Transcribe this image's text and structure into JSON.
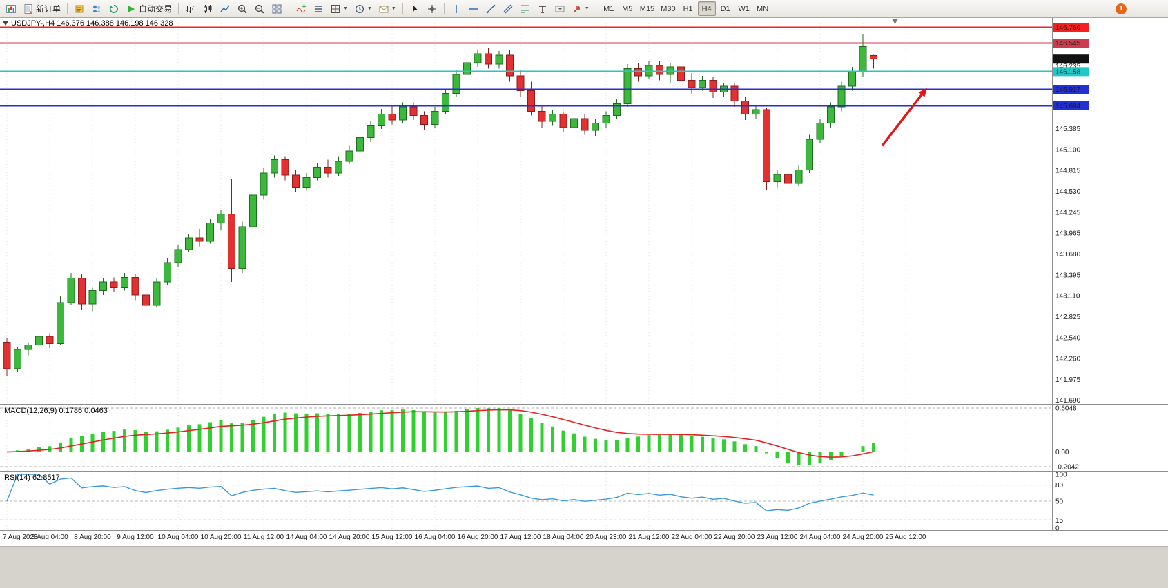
{
  "toolbar": {
    "new_order_label": "新订单",
    "auto_trading_label": "自动交易",
    "timeframes": [
      "M1",
      "M5",
      "M15",
      "M30",
      "H1",
      "H4",
      "D1",
      "W1",
      "MN"
    ],
    "active_timeframe": "H4",
    "notification_count": "1"
  },
  "icons": [
    "new-chart-icon",
    "new-order-icon",
    "metaeditor-icon",
    "navigator-icon",
    "terminal-icon",
    "autotrading-icon",
    "bar-chart-icon",
    "candlestick-chart-icon",
    "line-chart-icon",
    "zoom-in-icon",
    "zoom-out-icon",
    "tile-windows-icon",
    "indicators-icon",
    "indicator-list-icon",
    "grid-objects-icon",
    "periods-icon",
    "mail-icon",
    "cursor-icon",
    "crosshair-icon",
    "vertical-line-icon",
    "horizontal-line-icon",
    "trendline-icon",
    "channel-icon",
    "fibonacci-icon",
    "text-icon",
    "text-label-icon",
    "arrow-tool-icon",
    "dropdown-caret-icon",
    "chart-shift-marker",
    "one-click-trading-toggle"
  ],
  "chart": {
    "title": "USDJPY-,H4 146.376 146.388 146.198 146.328",
    "symbol": "USDJPY-",
    "period": "H4",
    "open": "146.376",
    "high": "146.388",
    "low": "146.198",
    "close": "146.328"
  },
  "chart_data": {
    "type": "candlestick",
    "symbol": "USDJPY-",
    "timeframe": "H4",
    "price_range": [
      141.65,
      146.85
    ],
    "colors": {
      "bull": "#3cb83c",
      "bear": "#e33030",
      "bull_border": "#1e6e1e",
      "bear_border": "#8f1c1c"
    },
    "candles": [
      [
        142.48,
        142.54,
        142.02,
        142.12
      ],
      [
        142.12,
        142.42,
        142.08,
        142.38
      ],
      [
        142.38,
        142.48,
        142.3,
        142.44
      ],
      [
        142.44,
        142.62,
        142.4,
        142.56
      ],
      [
        142.56,
        142.6,
        142.4,
        142.46
      ],
      [
        142.46,
        143.1,
        142.44,
        143.02
      ],
      [
        143.02,
        143.42,
        142.98,
        143.35
      ],
      [
        143.35,
        143.4,
        142.92,
        143.0
      ],
      [
        143.0,
        143.22,
        142.9,
        143.18
      ],
      [
        143.18,
        143.35,
        143.12,
        143.3
      ],
      [
        143.3,
        143.36,
        143.16,
        143.22
      ],
      [
        143.22,
        143.42,
        143.18,
        143.36
      ],
      [
        143.36,
        143.4,
        143.05,
        143.12
      ],
      [
        143.12,
        143.2,
        142.92,
        142.98
      ],
      [
        142.98,
        143.35,
        142.95,
        143.3
      ],
      [
        143.3,
        143.62,
        143.26,
        143.56
      ],
      [
        143.56,
        143.8,
        143.5,
        143.74
      ],
      [
        143.74,
        143.95,
        143.7,
        143.9
      ],
      [
        143.9,
        144.02,
        143.78,
        143.85
      ],
      [
        143.85,
        144.15,
        143.82,
        144.1
      ],
      [
        144.1,
        144.28,
        144.0,
        144.22
      ],
      [
        144.22,
        144.7,
        143.3,
        143.48
      ],
      [
        143.48,
        144.12,
        143.42,
        144.05
      ],
      [
        144.05,
        144.55,
        144.0,
        144.48
      ],
      [
        144.48,
        144.85,
        144.42,
        144.78
      ],
      [
        144.78,
        145.02,
        144.72,
        144.96
      ],
      [
        144.96,
        145.0,
        144.68,
        144.75
      ],
      [
        144.75,
        144.82,
        144.52,
        144.58
      ],
      [
        144.58,
        144.78,
        144.54,
        144.72
      ],
      [
        144.72,
        144.92,
        144.68,
        144.86
      ],
      [
        144.86,
        144.96,
        144.72,
        144.78
      ],
      [
        144.78,
        145.0,
        144.74,
        144.94
      ],
      [
        144.94,
        145.15,
        144.9,
        145.08
      ],
      [
        145.08,
        145.32,
        145.02,
        145.26
      ],
      [
        145.26,
        145.48,
        145.2,
        145.42
      ],
      [
        145.42,
        145.65,
        145.38,
        145.58
      ],
      [
        145.58,
        145.7,
        145.44,
        145.5
      ],
      [
        145.5,
        145.74,
        145.46,
        145.68
      ],
      [
        145.68,
        145.74,
        145.5,
        145.56
      ],
      [
        145.56,
        145.62,
        145.36,
        145.44
      ],
      [
        145.44,
        145.68,
        145.4,
        145.62
      ],
      [
        145.62,
        145.92,
        145.58,
        145.86
      ],
      [
        145.86,
        146.18,
        145.82,
        146.12
      ],
      [
        146.12,
        146.34,
        146.06,
        146.28
      ],
      [
        146.28,
        146.46,
        146.22,
        146.4
      ],
      [
        146.4,
        146.48,
        146.2,
        146.26
      ],
      [
        146.26,
        146.44,
        146.2,
        146.38
      ],
      [
        146.38,
        146.45,
        146.02,
        146.1
      ],
      [
        146.1,
        146.18,
        145.82,
        145.9
      ],
      [
        145.9,
        146.02,
        145.56,
        145.62
      ],
      [
        145.62,
        145.7,
        145.4,
        145.48
      ],
      [
        145.48,
        145.64,
        145.42,
        145.58
      ],
      [
        145.58,
        145.62,
        145.34,
        145.4
      ],
      [
        145.4,
        145.56,
        145.32,
        145.52
      ],
      [
        145.52,
        145.58,
        145.3,
        145.36
      ],
      [
        145.36,
        145.52,
        145.28,
        145.46
      ],
      [
        145.46,
        145.62,
        145.4,
        145.56
      ],
      [
        145.56,
        145.78,
        145.52,
        145.72
      ],
      [
        145.72,
        146.26,
        145.68,
        146.2
      ],
      [
        146.2,
        146.28,
        146.02,
        146.1
      ],
      [
        146.1,
        146.3,
        146.06,
        146.24
      ],
      [
        146.24,
        146.3,
        146.04,
        146.12
      ],
      [
        146.12,
        146.28,
        146.0,
        146.22
      ],
      [
        146.22,
        146.26,
        145.96,
        146.04
      ],
      [
        146.04,
        146.14,
        145.86,
        145.94
      ],
      [
        145.94,
        146.1,
        145.9,
        146.04
      ],
      [
        146.04,
        146.08,
        145.8,
        145.88
      ],
      [
        145.88,
        146.0,
        145.82,
        145.96
      ],
      [
        145.96,
        146.0,
        145.68,
        145.76
      ],
      [
        145.76,
        145.82,
        145.5,
        145.58
      ],
      [
        145.58,
        145.7,
        145.52,
        145.64
      ],
      [
        145.64,
        145.66,
        144.55,
        144.66
      ],
      [
        144.66,
        144.82,
        144.58,
        144.76
      ],
      [
        144.76,
        144.8,
        144.56,
        144.64
      ],
      [
        144.64,
        144.88,
        144.6,
        144.82
      ],
      [
        144.82,
        145.3,
        144.78,
        145.24
      ],
      [
        145.24,
        145.52,
        145.18,
        145.46
      ],
      [
        145.46,
        145.74,
        145.4,
        145.68
      ],
      [
        145.68,
        146.02,
        145.62,
        145.96
      ],
      [
        145.96,
        146.22,
        145.9,
        146.16
      ],
      [
        146.16,
        146.67,
        146.08,
        146.5
      ],
      [
        146.376,
        146.388,
        146.198,
        146.328
      ]
    ],
    "time_labels": [
      {
        "bar": 0,
        "text": "7 Aug 2023"
      },
      {
        "bar": 4,
        "text": "8 Aug 04:00"
      },
      {
        "bar": 8,
        "text": "8 Aug 20:00"
      },
      {
        "bar": 12,
        "text": "9 Aug 12:00"
      },
      {
        "bar": 16,
        "text": "10 Aug 04:00"
      },
      {
        "bar": 20,
        "text": "10 Aug 20:00"
      },
      {
        "bar": 24,
        "text": "11 Aug 12:00"
      },
      {
        "bar": 28,
        "text": "14 Aug 04:00"
      },
      {
        "bar": 32,
        "text": "14 Aug 20:00"
      },
      {
        "bar": 36,
        "text": "15 Aug 12:00"
      },
      {
        "bar": 40,
        "text": "16 Aug 04:00"
      },
      {
        "bar": 44,
        "text": "16 Aug 20:00"
      },
      {
        "bar": 48,
        "text": "17 Aug 12:00"
      },
      {
        "bar": 52,
        "text": "18 Aug 04:00"
      },
      {
        "bar": 56,
        "text": "20 Aug 23:00"
      },
      {
        "bar": 60,
        "text": "21 Aug 12:00"
      },
      {
        "bar": 64,
        "text": "22 Aug 04:00"
      },
      {
        "bar": 68,
        "text": "22 Aug 20:00"
      },
      {
        "bar": 72,
        "text": "23 Aug 12:00"
      },
      {
        "bar": 76,
        "text": "24 Aug 04:00"
      },
      {
        "bar": 80,
        "text": "24 Aug 20:00"
      },
      {
        "bar": 84,
        "text": "25 Aug 12:00"
      }
    ],
    "axis_labels": [
      "146.235",
      "145.385",
      "145.100",
      "144.815",
      "144.530",
      "144.245",
      "143.965",
      "143.680",
      "143.395",
      "143.110",
      "142.825",
      "142.540",
      "142.260",
      "141.975",
      "141.690"
    ],
    "hlines": [
      {
        "price": 146.76,
        "label": "146.760",
        "color": "#f52020",
        "badge": "#f52020",
        "width": 2
      },
      {
        "price": 146.545,
        "label": "146.545",
        "color": "#cb3c4e",
        "badge": "#cb3c4e",
        "width": 2
      },
      {
        "price": 146.328,
        "label": "146.328",
        "color": "#3a3a3a",
        "badge": "#111111",
        "width": 1
      },
      {
        "price": 146.158,
        "label": "146.158",
        "color": "#22c8c8",
        "badge": "#22c8c8",
        "width": 2.5
      },
      {
        "price": 145.917,
        "label": "145.917",
        "color": "#2430cf",
        "badge": "#2430cf",
        "width": 2
      },
      {
        "price": 145.694,
        "label": "145.694",
        "color": "#2430cf",
        "badge": "#2430cf",
        "width": 2
      }
    ],
    "arrow": {
      "from": {
        "bar": 81.8,
        "price": 145.15
      },
      "to": {
        "bar": 86.0,
        "price": 145.94
      },
      "color": "#e01616"
    },
    "shift_marker_bar": 83,
    "macd": {
      "label": "MACD(12,26,9) 0.1786 0.0463",
      "params": "12,26,9",
      "current_values": "0.1786 0.0463",
      "ylim": [
        -0.2042,
        0.6048
      ],
      "axis_labels": [
        {
          "value": 0.6048,
          "text": "0.6048"
        },
        {
          "value": 0,
          "text": "0.00"
        },
        {
          "value": -0.2042,
          "text": "-0.2042"
        }
      ],
      "histogram_color": "#2fd12f",
      "signal_color": "#e82020"
    },
    "rsi": {
      "label": "RSI(14) 62.8517",
      "params": "14",
      "current_value": "62.8517",
      "ylim": [
        0,
        100
      ],
      "levels": [
        {
          "value": 100,
          "text": "100"
        },
        {
          "value": 80,
          "text": "80"
        },
        {
          "value": 50,
          "text": "50"
        },
        {
          "value": 15,
          "text": "15"
        },
        {
          "value": 0,
          "text": "0"
        }
      ],
      "dashed_levels": [
        80,
        50,
        15
      ],
      "line_color": "#3a9ad9"
    }
  }
}
